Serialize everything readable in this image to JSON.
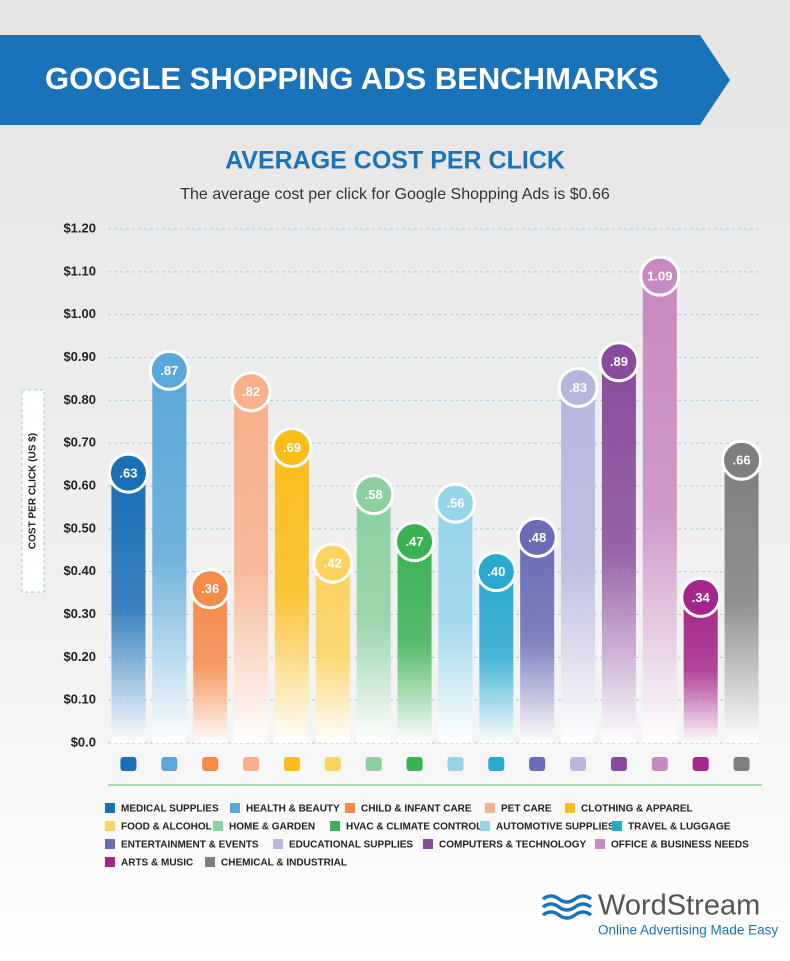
{
  "header": {
    "title": "GOOGLE SHOPPING ADS BENCHMARKS"
  },
  "chart_data": {
    "type": "bar",
    "title": "AVERAGE COST PER CLICK",
    "subtitle": "The average cost per click for Google Shopping Ads is $0.66",
    "y_label": "COST PER CLICK (US $)",
    "categories": [
      "MEDICAL SUPPLIES",
      "HEALTH & BEAUTY",
      "CHILD & INFANT CARE",
      "PET CARE",
      "CLOTHING & APPAREL",
      "FOOD & ALCOHOL",
      "HOME & GARDEN",
      "HVAC & CLIMATE CONTROL",
      "AUTOMOTIVE SUPPLIES",
      "TRAVEL & LUGGAGE",
      "ENTERTAINMENT & EVENTS",
      "EDUCATIONAL SUPPLIES",
      "COMPUTERS & TECHNOLOGY",
      "OFFICE & BUSINESS NEEDS",
      "ARTS & MUSIC",
      "CHEMICAL & INDUSTRIAL"
    ],
    "values": [
      0.63,
      0.87,
      0.36,
      0.82,
      0.69,
      0.42,
      0.58,
      0.47,
      0.56,
      0.4,
      0.48,
      0.83,
      0.89,
      1.09,
      0.34,
      0.66
    ],
    "value_labels": [
      ".63",
      ".87",
      ".36",
      ".82",
      ".69",
      ".42",
      ".58",
      ".47",
      ".56",
      ".40",
      ".48",
      ".83",
      ".89",
      "1.09",
      ".34",
      ".66"
    ],
    "colors": [
      "#1a6fb5",
      "#5aa8d8",
      "#f58a4b",
      "#f7b08a",
      "#fbbd1a",
      "#fcd35e",
      "#8dd0a0",
      "#3bb155",
      "#96d4ea",
      "#2aa9cf",
      "#6a6db5",
      "#b8b6dd",
      "#8a4b9c",
      "#c889c0",
      "#a5268b",
      "#7f7f80"
    ],
    "ylim": [
      0,
      1.2
    ],
    "yticks": [
      {
        "value": 0,
        "label": "$0.0"
      },
      {
        "value": 0.1,
        "label": "$0.10"
      },
      {
        "value": 0.2,
        "label": "$0.20"
      },
      {
        "value": 0.3,
        "label": "$0.30"
      },
      {
        "value": 0.4,
        "label": "$0.40"
      },
      {
        "value": 0.5,
        "label": "$0.50"
      },
      {
        "value": 0.6,
        "label": "$0.60"
      },
      {
        "value": 0.7,
        "label": "$0.70"
      },
      {
        "value": 0.8,
        "label": "$0.80"
      },
      {
        "value": 0.9,
        "label": "$0.90"
      },
      {
        "value": 1.0,
        "label": "$1.00"
      },
      {
        "value": 1.1,
        "label": "$1.10"
      },
      {
        "value": 1.2,
        "label": "$1.20"
      }
    ],
    "grid": true
  },
  "logo": {
    "name": "WordStream",
    "tagline": "Online Advertising Made Easy"
  }
}
